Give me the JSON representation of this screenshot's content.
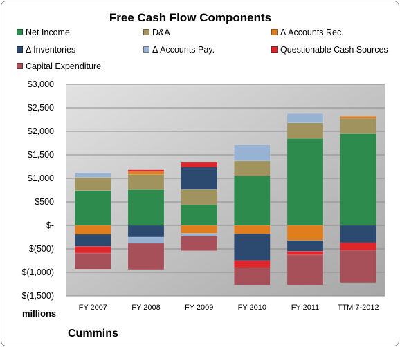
{
  "chart_data": {
    "type": "bar",
    "stacked": true,
    "title": "Free Cash Flow Components",
    "units_label": "millions",
    "footer": "Cummins",
    "categories": [
      "FY 2007",
      "FY 2008",
      "FY 2009",
      "FY 2010",
      "FY 2011",
      "TTM 7-2012"
    ],
    "ylim": [
      -1500,
      3000
    ],
    "yticks": [
      3000,
      2500,
      2000,
      1500,
      1000,
      500,
      0,
      -500,
      -1000,
      -1500
    ],
    "ytick_labels": [
      "$3,000",
      "$2,500",
      "$2,000",
      "$1,500",
      "$1,000",
      "$500",
      "$-",
      "$(500)",
      "$(1,000)",
      "$(1,500)"
    ],
    "legend_position": "top",
    "series": [
      {
        "name": "Net Income",
        "color": "#2e8b4e",
        "values": [
          740,
          760,
          440,
          1050,
          1850,
          1950
        ]
      },
      {
        "name": "D&A",
        "color": "#a0935e",
        "values": [
          280,
          320,
          320,
          320,
          330,
          330
        ]
      },
      {
        "name": "Δ Accounts Rec.",
        "color": "#e07e1e",
        "values": [
          -190,
          60,
          -170,
          -180,
          -320,
          40
        ]
      },
      {
        "name": "Δ Inventories",
        "color": "#2c4970",
        "values": [
          -260,
          -250,
          480,
          -570,
          -230,
          -370
        ]
      },
      {
        "name": "Δ Accounts Pay.",
        "color": "#98b2d4",
        "values": [
          100,
          -130,
          -60,
          340,
          200,
          0
        ]
      },
      {
        "name": "Questionable Cash Sources",
        "color": "#e0262a",
        "values": [
          -140,
          40,
          100,
          -150,
          -80,
          -160
        ]
      },
      {
        "name": "Capital Expenditure",
        "color": "#a8505a",
        "values": [
          -340,
          -560,
          -310,
          -370,
          -640,
          -690
        ]
      }
    ]
  }
}
